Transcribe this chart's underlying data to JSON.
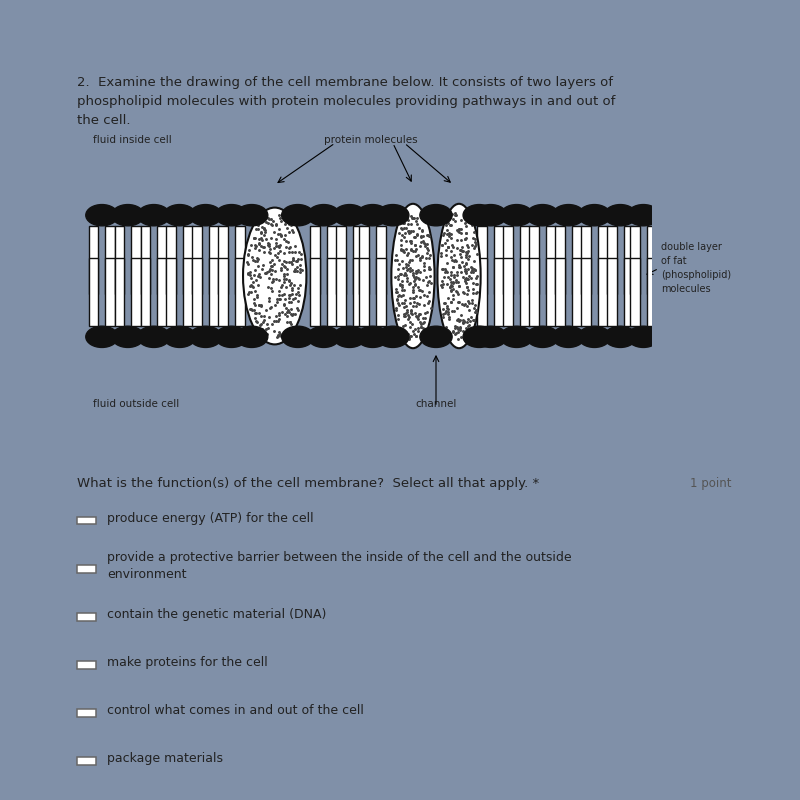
{
  "bg_top_color": "#0a0a0a",
  "bg_main_color": "#8090a8",
  "panel1_bg": "#dcdcdc",
  "panel2_bg": "#e8e8e8",
  "title_text": "2.  Examine the drawing of the cell membrane below. It consists of two layers of\nphospholipid molecules with protein molecules providing pathways in and out of\nthe cell.",
  "label_fluid_inside": "fluid inside cell",
  "label_protein": "protein molecules",
  "label_double_layer": "double layer\nof fat\n(phospholipid)\nmolecules",
  "label_channel": "channel",
  "label_fluid_outside": "fluid outside cell",
  "question_text": "What is the function(s) of the cell membrane?  Select all that apply. *",
  "point_text": "1 point",
  "options": [
    "produce energy (ATP) for the cell",
    "provide a protective barrier between the inside of the cell and the outside\nenvironment",
    "contain the genetic material (DNA)",
    "make proteins for the cell",
    "control what comes in and out of the cell",
    "package materials"
  ],
  "membrane_color": "#111111",
  "text_color": "#222222",
  "font_size_title": 9.5,
  "font_size_label": 7.5,
  "font_size_question": 9.5,
  "font_size_options": 9.0
}
